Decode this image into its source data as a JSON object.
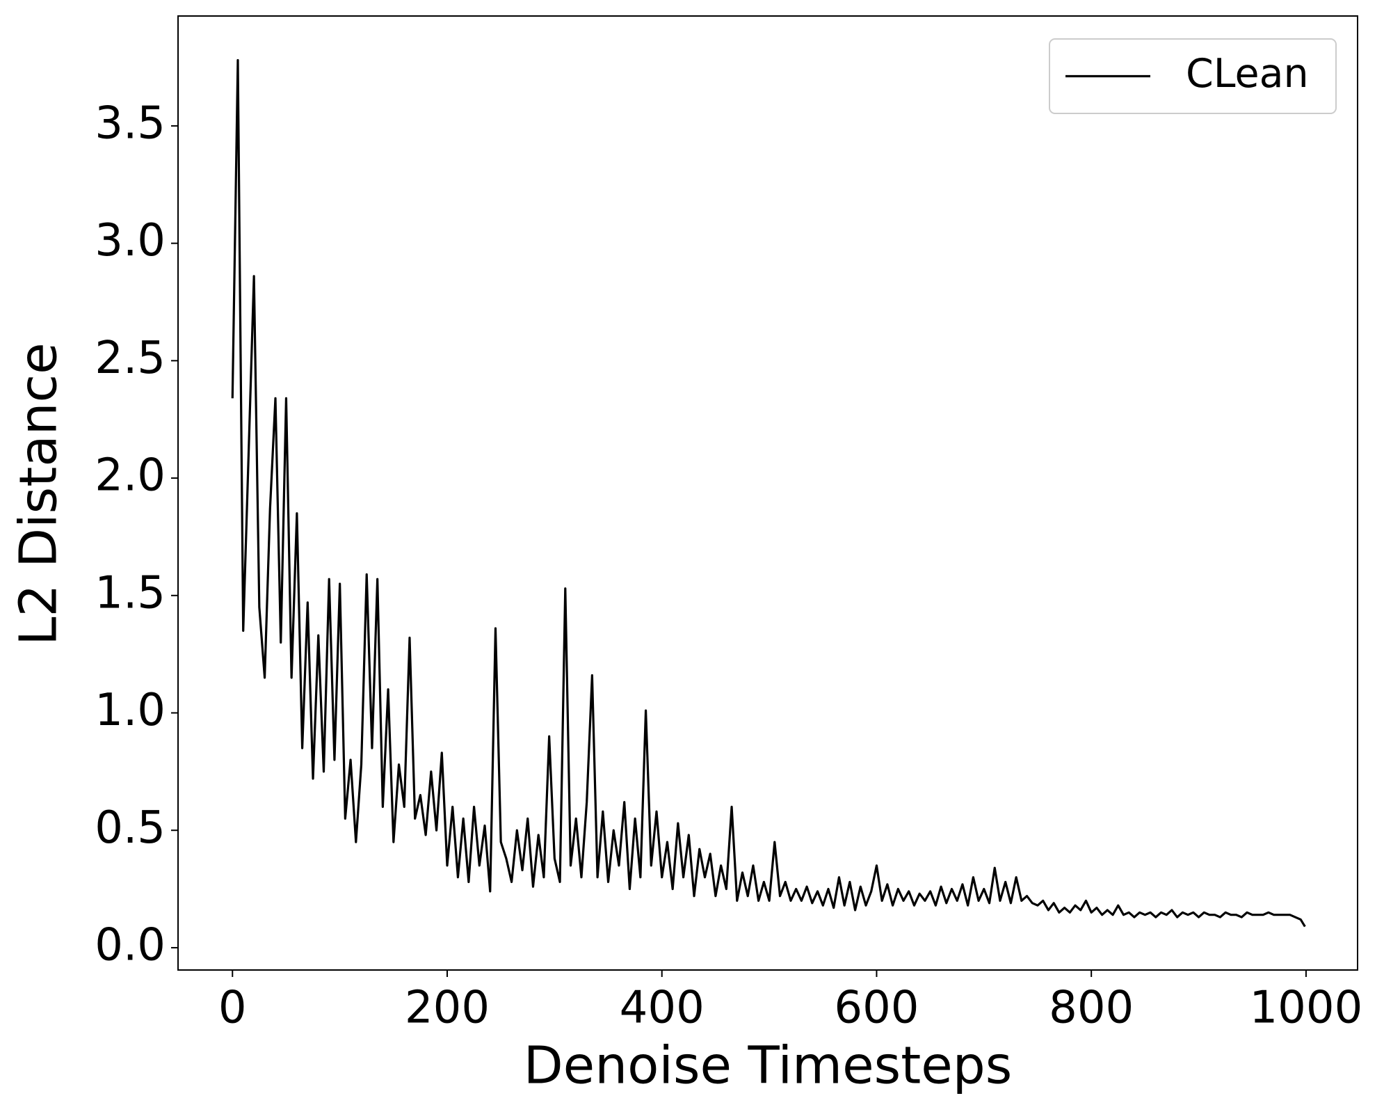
{
  "chart_data": {
    "type": "line",
    "xlabel": "Denoise Timesteps",
    "ylabel": "L2 Distance",
    "x": [
      0,
      5,
      10,
      15,
      20,
      25,
      30,
      35,
      40,
      45,
      50,
      55,
      60,
      65,
      70,
      75,
      80,
      85,
      90,
      95,
      100,
      105,
      110,
      115,
      120,
      125,
      130,
      135,
      140,
      145,
      150,
      155,
      160,
      165,
      170,
      175,
      180,
      185,
      190,
      195,
      200,
      205,
      210,
      215,
      220,
      225,
      230,
      235,
      240,
      245,
      250,
      255,
      260,
      265,
      270,
      275,
      280,
      285,
      290,
      295,
      300,
      305,
      310,
      315,
      320,
      325,
      330,
      335,
      340,
      345,
      350,
      355,
      360,
      365,
      370,
      375,
      380,
      385,
      390,
      395,
      400,
      405,
      410,
      415,
      420,
      425,
      430,
      435,
      440,
      445,
      450,
      455,
      460,
      465,
      470,
      475,
      480,
      485,
      490,
      495,
      500,
      505,
      510,
      515,
      520,
      525,
      530,
      535,
      540,
      545,
      550,
      555,
      560,
      565,
      570,
      575,
      580,
      585,
      590,
      595,
      600,
      605,
      610,
      615,
      620,
      625,
      630,
      635,
      640,
      645,
      650,
      655,
      660,
      665,
      670,
      675,
      680,
      685,
      690,
      695,
      700,
      705,
      710,
      715,
      720,
      725,
      730,
      735,
      740,
      745,
      750,
      755,
      760,
      765,
      770,
      775,
      780,
      785,
      790,
      795,
      800,
      805,
      810,
      815,
      820,
      825,
      830,
      835,
      840,
      845,
      850,
      855,
      860,
      865,
      870,
      875,
      880,
      885,
      890,
      895,
      900,
      905,
      910,
      915,
      920,
      925,
      930,
      935,
      940,
      945,
      950,
      955,
      960,
      965,
      970,
      975,
      980,
      985,
      990,
      995,
      999
    ],
    "series": [
      {
        "name": "CLean",
        "color": "#000000",
        "values": [
          2.34,
          3.78,
          1.35,
          2.1,
          2.86,
          1.45,
          1.15,
          1.87,
          2.34,
          1.3,
          2.34,
          1.15,
          1.85,
          0.85,
          1.47,
          0.72,
          1.33,
          0.75,
          1.57,
          0.8,
          1.55,
          0.55,
          0.8,
          0.45,
          0.78,
          1.59,
          0.85,
          1.57,
          0.6,
          1.1,
          0.45,
          0.78,
          0.6,
          1.32,
          0.55,
          0.65,
          0.48,
          0.75,
          0.5,
          0.83,
          0.35,
          0.6,
          0.3,
          0.55,
          0.28,
          0.6,
          0.35,
          0.52,
          0.24,
          1.36,
          0.45,
          0.38,
          0.28,
          0.5,
          0.33,
          0.55,
          0.26,
          0.48,
          0.3,
          0.9,
          0.38,
          0.28,
          1.53,
          0.35,
          0.55,
          0.3,
          0.62,
          1.16,
          0.3,
          0.58,
          0.28,
          0.5,
          0.35,
          0.62,
          0.25,
          0.55,
          0.3,
          1.01,
          0.35,
          0.58,
          0.3,
          0.45,
          0.25,
          0.53,
          0.3,
          0.48,
          0.22,
          0.42,
          0.3,
          0.4,
          0.22,
          0.35,
          0.25,
          0.6,
          0.2,
          0.32,
          0.22,
          0.35,
          0.2,
          0.28,
          0.2,
          0.45,
          0.22,
          0.28,
          0.2,
          0.25,
          0.2,
          0.26,
          0.19,
          0.24,
          0.18,
          0.25,
          0.17,
          0.3,
          0.18,
          0.28,
          0.16,
          0.26,
          0.18,
          0.24,
          0.35,
          0.2,
          0.27,
          0.18,
          0.25,
          0.2,
          0.24,
          0.18,
          0.23,
          0.2,
          0.24,
          0.18,
          0.26,
          0.19,
          0.25,
          0.2,
          0.27,
          0.18,
          0.3,
          0.2,
          0.25,
          0.19,
          0.34,
          0.2,
          0.28,
          0.19,
          0.3,
          0.2,
          0.22,
          0.19,
          0.18,
          0.2,
          0.16,
          0.19,
          0.15,
          0.17,
          0.15,
          0.18,
          0.16,
          0.2,
          0.15,
          0.17,
          0.14,
          0.16,
          0.14,
          0.18,
          0.14,
          0.15,
          0.13,
          0.15,
          0.14,
          0.15,
          0.13,
          0.15,
          0.14,
          0.16,
          0.13,
          0.15,
          0.14,
          0.15,
          0.13,
          0.15,
          0.14,
          0.14,
          0.13,
          0.15,
          0.14,
          0.14,
          0.13,
          0.15,
          0.14,
          0.14,
          0.14,
          0.15,
          0.14,
          0.14,
          0.14,
          0.14,
          0.13,
          0.12,
          0.09
        ]
      }
    ],
    "xlim": [
      -50.7,
      1048
    ],
    "xticks": [
      0,
      200,
      400,
      600,
      800,
      1000
    ],
    "ylim": [
      -0.095,
      3.968
    ],
    "yticks": [
      {
        "value": 0,
        "label": "0.0"
      },
      0.5,
      {
        "value": 1,
        "label": "1.0"
      },
      1.5,
      {
        "value": 2,
        "label": "2.0"
      },
      2.5,
      {
        "value": 3,
        "label": "3.0"
      },
      3.5
    ],
    "legend": "upper right",
    "grid": false
  }
}
